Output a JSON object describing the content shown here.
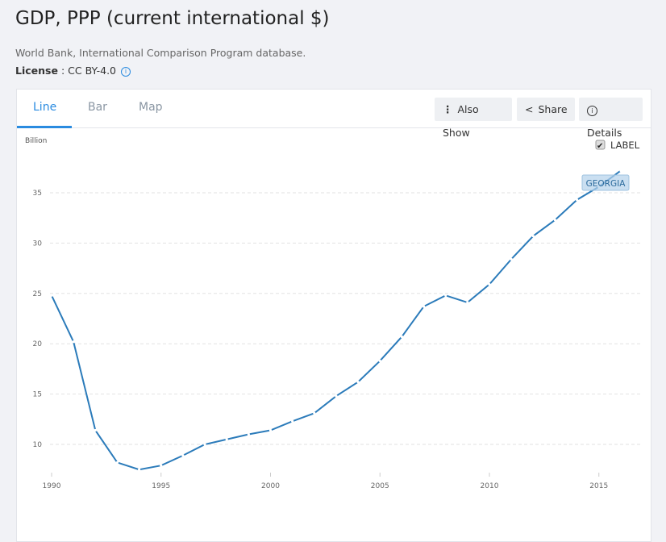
{
  "header": {
    "title": "GDP, PPP (current international $)",
    "source": "World Bank, International Comparison Program database.",
    "license_label": "License",
    "license_value": ": CC BY-4.0"
  },
  "tabs": [
    {
      "label": "Line"
    },
    {
      "label": "Bar"
    },
    {
      "label": "Map"
    }
  ],
  "toolbar": {
    "also_show": "Also Show",
    "share": "Share",
    "details": "Details"
  },
  "label_toggle": {
    "label": "LABEL",
    "checked": true
  },
  "colors": {
    "line": "#2b7bba",
    "accent": "#2a8be0"
  },
  "chart_data": {
    "type": "line",
    "title": "GDP, PPP (current international $)",
    "ylabel": "Billion",
    "xlabel": "",
    "ylim": [
      6,
      38
    ],
    "xlim": [
      1990,
      2016
    ],
    "yticks": [
      10,
      15,
      20,
      25,
      30,
      35
    ],
    "xticks": [
      1990,
      1995,
      2000,
      2005,
      2010,
      2015
    ],
    "grid": true,
    "series": [
      {
        "name": "GEORGIA",
        "x": [
          1990,
          1991,
          1992,
          1993,
          1994,
          1995,
          1996,
          1997,
          1998,
          1999,
          2000,
          2001,
          2002,
          2003,
          2004,
          2005,
          2006,
          2007,
          2008,
          2009,
          2010,
          2011,
          2012,
          2013,
          2014,
          2015,
          2016
        ],
        "values": [
          24.8,
          20.2,
          11.4,
          8.2,
          7.5,
          7.9,
          8.9,
          10.0,
          10.5,
          11.0,
          11.4,
          12.3,
          13.1,
          14.8,
          16.2,
          18.3,
          20.7,
          23.7,
          24.8,
          24.1,
          25.9,
          28.4,
          30.7,
          32.3,
          34.3,
          35.6,
          37.2
        ]
      }
    ]
  }
}
